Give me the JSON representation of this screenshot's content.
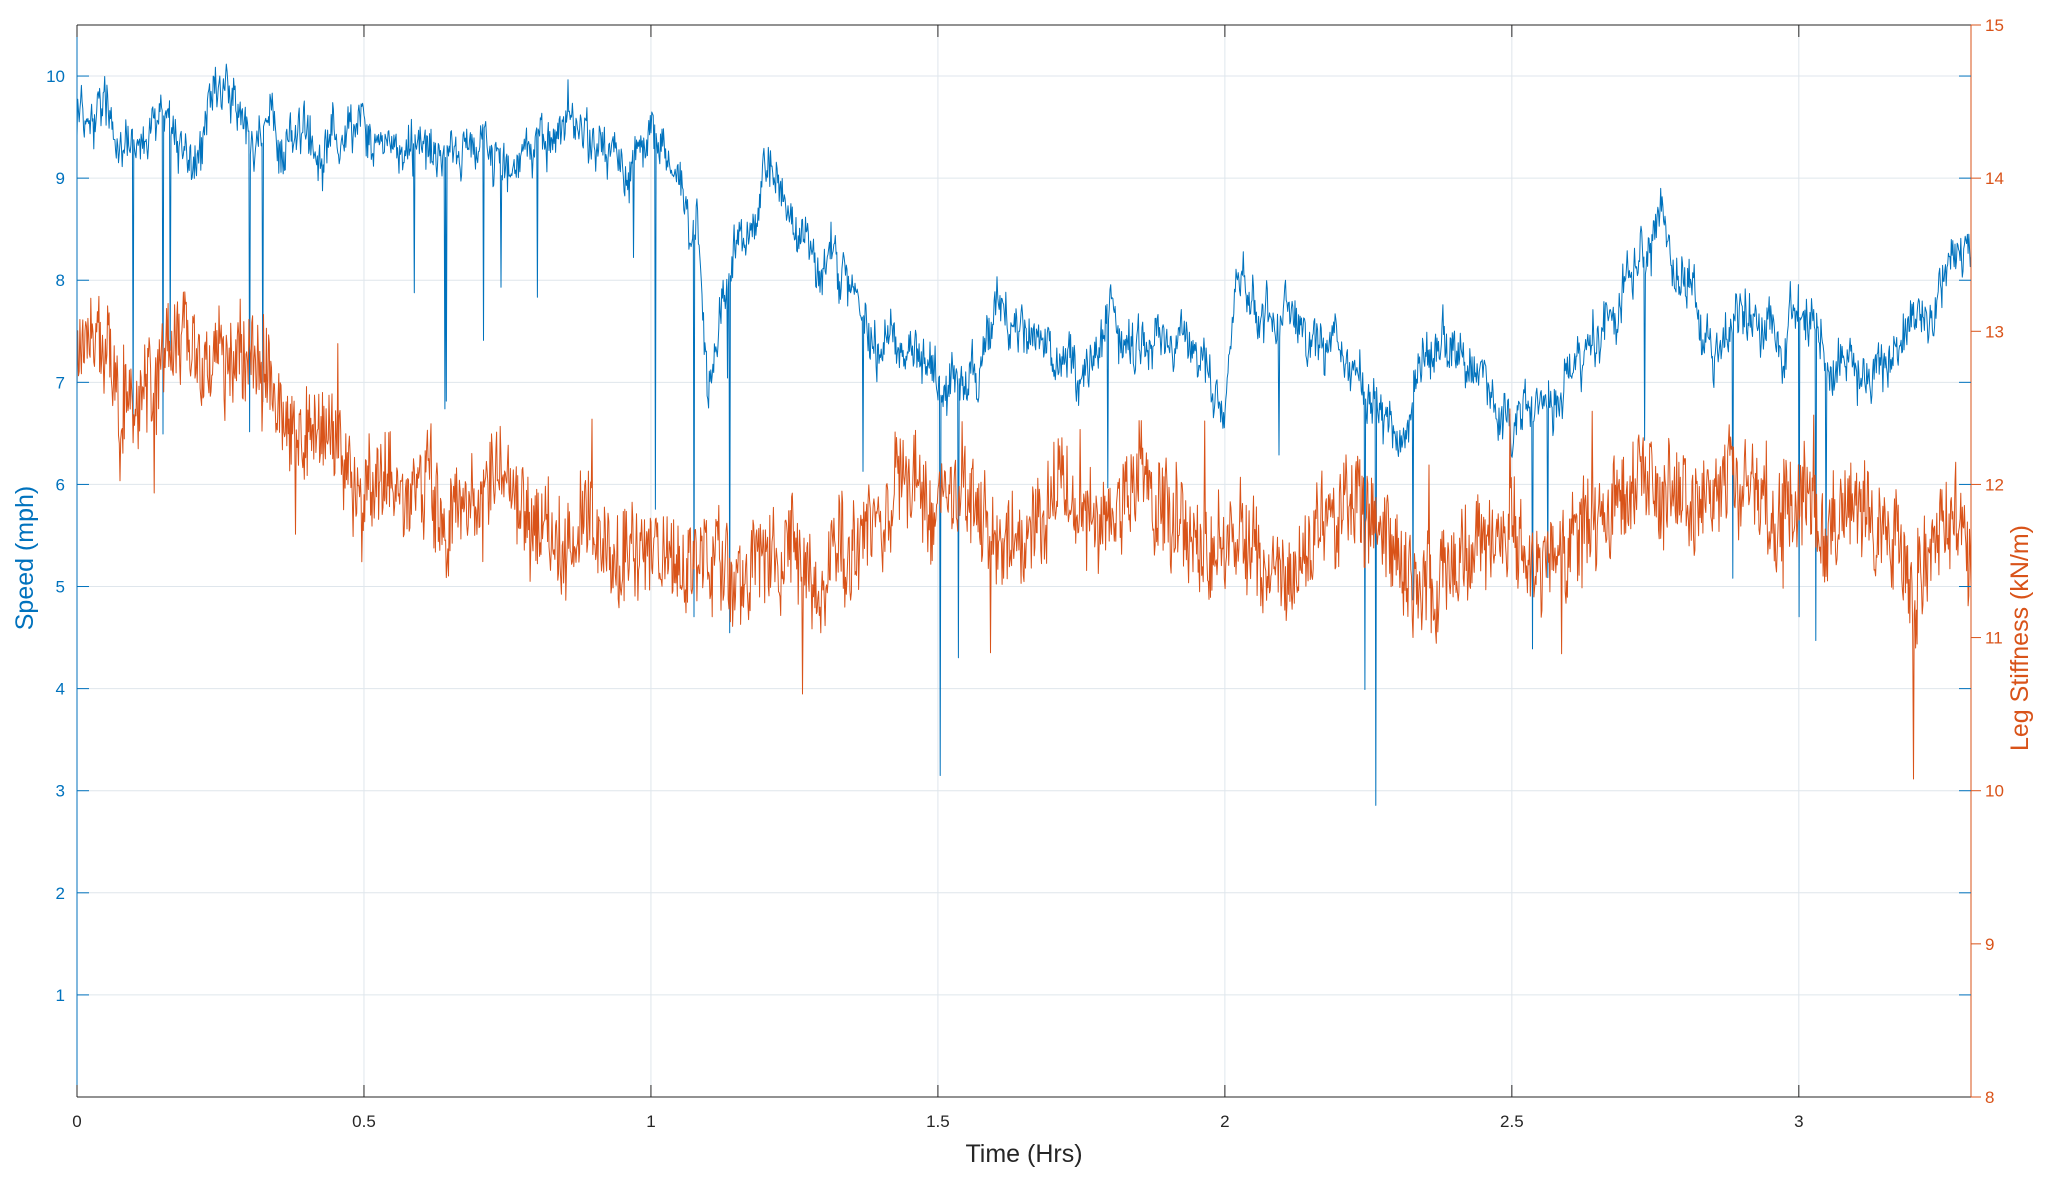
{
  "chart_data": {
    "type": "line",
    "title": "",
    "xlabel": "Time (Hrs)",
    "ylabel_left": "Speed (mph)",
    "ylabel_right": "Leg Stiffness (kN/m)",
    "xlim": [
      0,
      3.3
    ],
    "ylim_left": [
      0,
      10.5
    ],
    "ylim_right": [
      8,
      15
    ],
    "x_ticks": [
      0,
      0.5,
      1,
      1.5,
      2,
      2.5,
      3
    ],
    "x_tick_labels": [
      "0",
      "0.5",
      "1",
      "1.5",
      "2",
      "2.5",
      "3"
    ],
    "y_left_ticks": [
      1,
      2,
      3,
      4,
      5,
      6,
      7,
      8,
      9,
      10
    ],
    "y_left_tick_labels": [
      "1",
      "2",
      "3",
      "4",
      "5",
      "6",
      "7",
      "8",
      "9",
      "10"
    ],
    "y_right_ticks": [
      8,
      9,
      10,
      11,
      12,
      13,
      14,
      15
    ],
    "y_right_tick_labels": [
      "8",
      "9",
      "10",
      "11",
      "12",
      "13",
      "14",
      "15"
    ],
    "grid": true,
    "colors": {
      "left": "#0072BD",
      "right": "#D95319",
      "grid": "#dfe6ec",
      "axis": "#262626"
    },
    "series": [
      {
        "axis": "left",
        "x": [
          0,
          0.05,
          0.1,
          0.15,
          0.2,
          0.25,
          0.3,
          0.35,
          0.4,
          0.45,
          0.5,
          0.55,
          0.6,
          0.65,
          0.7,
          0.75,
          0.8,
          0.85,
          0.9,
          0.95,
          1.0,
          1.05,
          1.08,
          1.1,
          1.15,
          1.2,
          1.25,
          1.3,
          1.35,
          1.4,
          1.45,
          1.5,
          1.55,
          1.6,
          1.65,
          1.7,
          1.75,
          1.8,
          1.85,
          1.9,
          1.95,
          2.0,
          2.02,
          2.05,
          2.1,
          2.15,
          2.2,
          2.25,
          2.3,
          2.35,
          2.4,
          2.45,
          2.5,
          2.55,
          2.6,
          2.65,
          2.7,
          2.75,
          2.8,
          2.85,
          2.9,
          2.95,
          3.0,
          3.05,
          3.1,
          3.15,
          3.2,
          3.25,
          3.3
        ],
        "values": [
          9.7,
          9.6,
          9.3,
          9.6,
          9.0,
          9.7,
          9.5,
          9.3,
          9.4,
          9.5,
          9.5,
          9.3,
          9.2,
          9.3,
          9.3,
          9.4,
          9.2,
          9.6,
          9.3,
          9.0,
          9.4,
          9.2,
          8.5,
          7.0,
          8.3,
          9.0,
          8.5,
          8.2,
          8.0,
          7.5,
          7.3,
          7.0,
          7.1,
          7.6,
          7.7,
          7.3,
          7.0,
          7.5,
          7.3,
          7.4,
          7.2,
          6.5,
          8.0,
          7.7,
          7.8,
          7.5,
          7.4,
          6.8,
          6.5,
          7.3,
          7.2,
          7.0,
          6.6,
          6.7,
          7.0,
          7.4,
          8.1,
          8.5,
          8.2,
          7.3,
          7.6,
          7.4,
          7.8,
          7.3,
          6.9,
          7.2,
          7.6,
          8.0,
          8.2
        ]
      },
      {
        "axis": "right",
        "x": [
          0,
          0.05,
          0.1,
          0.15,
          0.2,
          0.25,
          0.3,
          0.35,
          0.4,
          0.45,
          0.5,
          0.55,
          0.6,
          0.65,
          0.7,
          0.75,
          0.8,
          0.85,
          0.9,
          0.95,
          1.0,
          1.05,
          1.1,
          1.15,
          1.2,
          1.25,
          1.3,
          1.35,
          1.4,
          1.45,
          1.5,
          1.55,
          1.6,
          1.65,
          1.7,
          1.75,
          1.8,
          1.85,
          1.9,
          1.95,
          2.0,
          2.05,
          2.1,
          2.15,
          2.2,
          2.25,
          2.3,
          2.35,
          2.4,
          2.45,
          2.5,
          2.55,
          2.6,
          2.65,
          2.7,
          2.75,
          2.8,
          2.85,
          2.9,
          2.95,
          3.0,
          3.05,
          3.1,
          3.15,
          3.2,
          3.25,
          3.3
        ],
        "values": [
          12.8,
          13.0,
          12.6,
          12.8,
          12.9,
          12.7,
          12.9,
          12.5,
          12.3,
          12.2,
          12.1,
          11.9,
          12.0,
          11.7,
          11.8,
          12.0,
          11.8,
          11.6,
          11.7,
          11.5,
          11.6,
          11.4,
          11.5,
          11.3,
          11.4,
          11.5,
          11.3,
          11.6,
          11.9,
          12.0,
          11.8,
          11.9,
          11.7,
          11.6,
          11.9,
          11.8,
          11.7,
          12.0,
          11.8,
          11.6,
          11.7,
          11.5,
          11.4,
          11.6,
          11.7,
          11.8,
          11.5,
          11.3,
          11.5,
          11.6,
          11.7,
          11.4,
          11.6,
          11.8,
          12.0,
          12.1,
          11.9,
          12.0,
          12.1,
          11.8,
          11.9,
          11.7,
          11.9,
          11.8,
          11.2,
          11.9,
          11.6
        ]
      }
    ]
  }
}
